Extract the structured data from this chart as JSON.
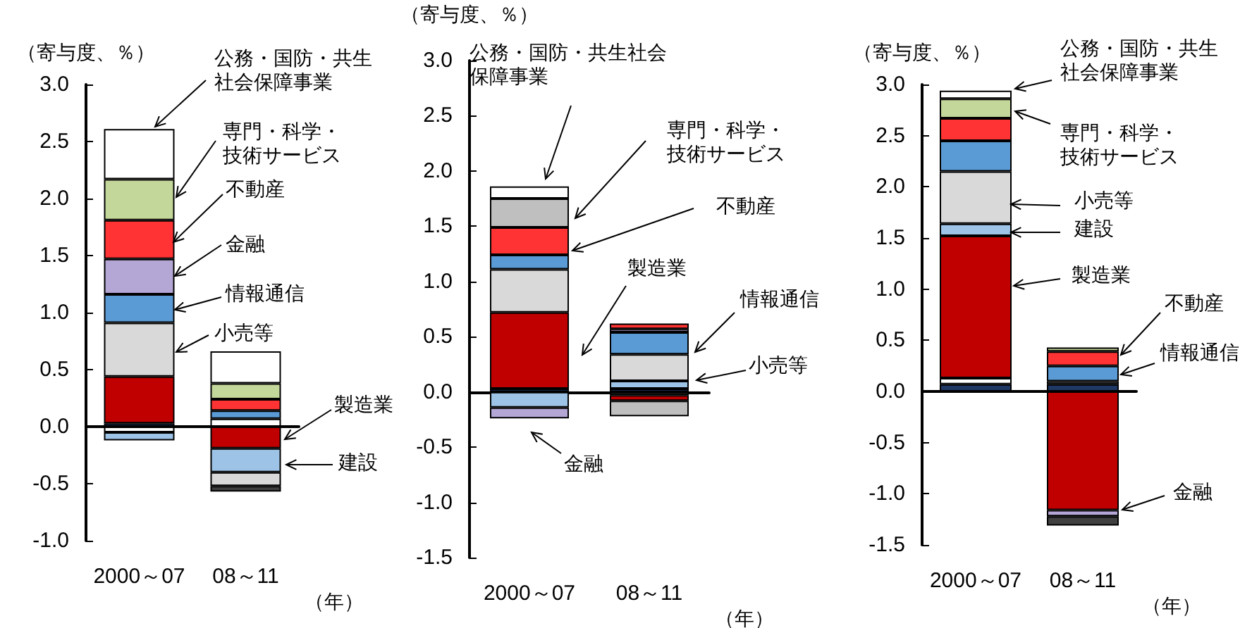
{
  "chart_data": [
    {
      "type": "bar",
      "stacked": true,
      "ylabel": "（寄与度、％）",
      "xlabel": "（年）",
      "categories": [
        "2000～07",
        "08～11"
      ],
      "ylim": [
        -1,
        3
      ],
      "yticks": [
        {
          "value": -1,
          "label": "-1.0"
        },
        -0.5,
        {
          "value": 0,
          "label": "0.0"
        },
        0.5,
        {
          "value": 1,
          "label": "1.0"
        },
        1.5,
        {
          "value": 2,
          "label": "2.0"
        },
        2.5,
        {
          "value": 3,
          "label": "3.0"
        }
      ],
      "series": [
        {
          "color": "#1f3864",
          "values": [
            0.03,
            null
          ]
        },
        {
          "color": "#ffffff",
          "values": [
            -0.05,
            0.07
          ]
        },
        {
          "color": "#c00000",
          "values": [
            0.41,
            -0.19
          ]
        },
        {
          "color": "#9dc3e6",
          "values": [
            -0.07,
            -0.21
          ]
        },
        {
          "color": "#d9d9d9",
          "values": [
            0.47,
            -0.12
          ]
        },
        {
          "color": "#5b9bd5",
          "values": [
            0.25,
            0.07
          ]
        },
        {
          "color": "#b4a7d6",
          "values": [
            0.31,
            null
          ]
        },
        {
          "color": "#ff3333",
          "values": [
            0.34,
            0.1
          ]
        },
        {
          "color": "#c4d79b",
          "values": [
            0.36,
            0.14
          ]
        },
        {
          "color": "#ffffff",
          "values": [
            0.44,
            0.28
          ]
        },
        {
          "color": "#404040",
          "values": [
            null,
            -0.05
          ]
        }
      ],
      "annotations": [
        "公務・国防・共生社会保障事業",
        "専門・科学・技術サービス",
        "不動産",
        "金融",
        "情報通信",
        "小売等",
        "製造業",
        "建設"
      ]
    },
    {
      "type": "bar",
      "stacked": true,
      "ylabel": "（寄与度、％）",
      "xlabel": "（年）",
      "categories": [
        "2000～07",
        "08～11"
      ],
      "ylim": [
        -1.5,
        3
      ],
      "yticks": [
        {
          "value": -1.5,
          "label": "-1.5"
        },
        {
          "value": -1,
          "label": "-1.0"
        },
        -0.5,
        {
          "value": 0,
          "label": "0.0"
        },
        0.5,
        {
          "value": 1,
          "label": "1.0"
        },
        1.5,
        {
          "value": 2,
          "label": "2.0"
        },
        2.5,
        {
          "value": 3,
          "label": "3.0"
        }
      ],
      "series": [
        {
          "color": "#1f3864",
          "values": [
            0.03,
            0.03
          ]
        },
        {
          "color": "#404040",
          "values": [
            null,
            -0.03
          ]
        },
        {
          "color": "#c00000",
          "values": [
            0.69,
            -0.05
          ]
        },
        {
          "color": "#9dc3e6",
          "values": [
            -0.14,
            0.07
          ]
        },
        {
          "color": "#d9d9d9",
          "values": [
            0.39,
            0.24
          ]
        },
        {
          "color": "#5b9bd5",
          "values": [
            0.13,
            0.2
          ]
        },
        {
          "color": "#b4a7d6",
          "values": [
            -0.1,
            0.03
          ]
        },
        {
          "color": "#ff3333",
          "values": [
            0.25,
            0.05
          ]
        },
        {
          "color": "#bfbfbf",
          "values": [
            0.26,
            -0.14
          ]
        },
        {
          "color": "#ffffff",
          "values": [
            0.11,
            null
          ]
        }
      ],
      "annotations": [
        "公務・国防・共生社会保障事業",
        "専門・科学・技術サービス",
        "不動産",
        "製造業",
        "情報通信",
        "小売等",
        "金融"
      ]
    },
    {
      "type": "bar",
      "stacked": true,
      "ylabel": "（寄与度、％）",
      "xlabel": "（年）",
      "categories": [
        "2000～07",
        "08～11"
      ],
      "ylim": [
        -1.5,
        3
      ],
      "yticks": [
        {
          "value": -1.5,
          "label": "-1.5"
        },
        {
          "value": -1,
          "label": "-1.0"
        },
        -0.5,
        {
          "value": 0,
          "label": "0.0"
        },
        0.5,
        {
          "value": 1,
          "label": "1.0"
        },
        1.5,
        {
          "value": 2,
          "label": "2.0"
        },
        2.5,
        {
          "value": 3,
          "label": "3.0"
        }
      ],
      "series": [
        {
          "color": "#1f3864",
          "values": [
            0.07,
            0.07
          ]
        },
        {
          "color": "#ffffff",
          "values": [
            0.06,
            0.03
          ]
        },
        {
          "color": "#c00000",
          "values": [
            1.39,
            -1.16
          ]
        },
        {
          "color": "#9dc3e6",
          "values": [
            0.12,
            null
          ]
        },
        {
          "color": "#d9d9d9",
          "values": [
            0.51,
            null
          ]
        },
        {
          "color": "#5b9bd5",
          "values": [
            0.3,
            0.15
          ]
        },
        {
          "color": "#b4a7d6",
          "values": [
            null,
            -0.06
          ]
        },
        {
          "color": "#ff3333",
          "values": [
            0.22,
            0.14
          ]
        },
        {
          "color": "#c4d79b",
          "values": [
            0.19,
            0.04
          ]
        },
        {
          "color": "#ffffff",
          "values": [
            0.08,
            null
          ]
        },
        {
          "color": "#404040",
          "values": [
            null,
            -0.09
          ]
        }
      ],
      "annotations": [
        "公務・国防・共生社会保障事業",
        "専門・科学・技術サービス",
        "小売等",
        "建設",
        "製造業",
        "不動産",
        "情報通信",
        "金融"
      ]
    }
  ]
}
